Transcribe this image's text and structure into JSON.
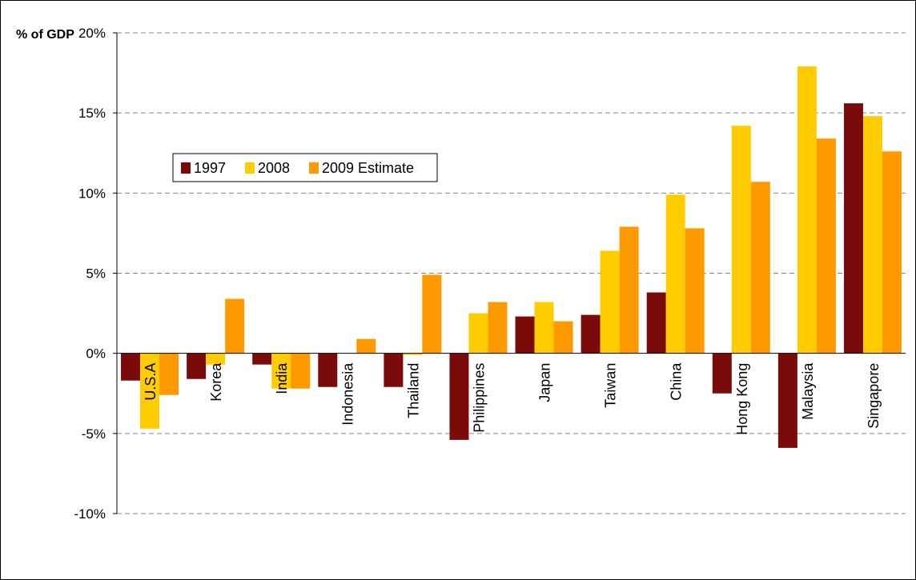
{
  "chart_data": {
    "type": "bar",
    "units_label": "% of GDP",
    "categories": [
      "U.S.A",
      "Korea",
      "India",
      "Indonesia",
      "Thailand",
      "Philippines",
      "Japan",
      "Taiwan",
      "China",
      "Hong Kong",
      "Malaysia",
      "Singapore"
    ],
    "series": [
      {
        "name": "1997",
        "color": "#7B0A0A",
        "values": [
          -1.7,
          -1.6,
          -0.7,
          -2.1,
          -2.1,
          -5.4,
          2.3,
          2.4,
          3.8,
          -2.5,
          -5.9,
          15.6
        ]
      },
      {
        "name": "2008",
        "color": "#FFCC00",
        "values": [
          -4.7,
          -0.7,
          -2.2,
          0.0,
          -0.1,
          2.5,
          3.2,
          6.4,
          9.9,
          14.2,
          17.9,
          14.8
        ]
      },
      {
        "name": "2009 Estimate",
        "color": "#FF9900",
        "values": [
          -2.6,
          3.4,
          -2.2,
          0.9,
          4.9,
          3.2,
          2.0,
          7.9,
          7.8,
          10.7,
          13.4,
          12.6
        ]
      }
    ],
    "ylim": [
      -10,
      20
    ],
    "yticks": [
      20,
      15,
      10,
      5,
      0,
      -5,
      -10
    ],
    "ytick_labels": [
      "20%",
      "15%",
      "10%",
      "5%",
      "0%",
      "-5%",
      "-10%"
    ],
    "grid": true,
    "legend_position": "upper-left"
  }
}
